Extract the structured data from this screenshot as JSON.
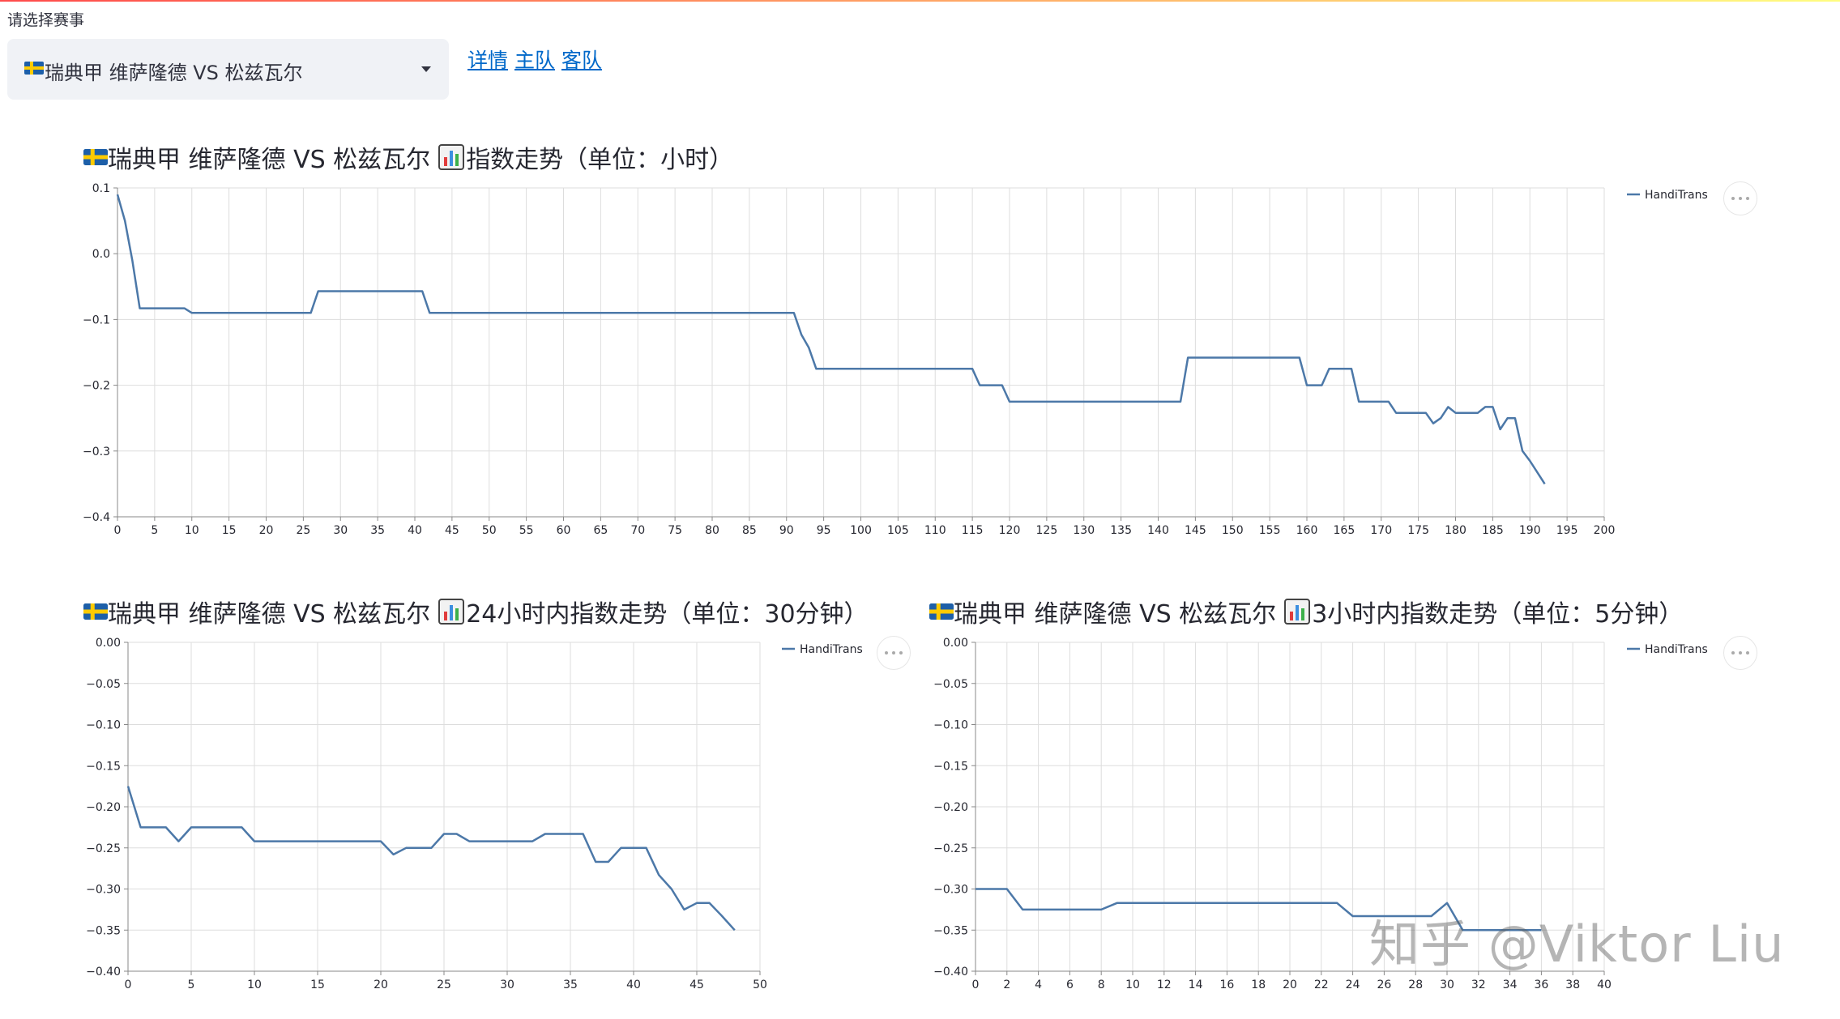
{
  "page": {
    "select_label": "请选择赛事",
    "selected_match": "瑞典甲 维萨隆德 VS 松兹瓦尔",
    "links": {
      "detail": "详情",
      "home": "主队",
      "away": "客队"
    },
    "watermark": "知乎 @Viktor Liu",
    "line_color": "#4c78a8",
    "flag_icon": "sweden-flag-icon",
    "chart_icon": "bar-chart-icon"
  },
  "chart_data": [
    {
      "type": "line",
      "title": "瑞典甲 维萨隆德 VS 松兹瓦尔 📊指数走势（单位：小时）",
      "title_main": "瑞典甲 维萨隆德 VS 松兹瓦尔",
      "title_sub": "指数走势（单位：小时）",
      "legend": "HandiTrans",
      "xlim": [
        0,
        200
      ],
      "ylim": [
        -0.4,
        0.1
      ],
      "x_ticks": [
        0,
        5,
        10,
        15,
        20,
        25,
        30,
        35,
        40,
        45,
        50,
        55,
        60,
        65,
        70,
        75,
        80,
        85,
        90,
        95,
        100,
        105,
        110,
        115,
        120,
        125,
        130,
        135,
        140,
        145,
        150,
        155,
        160,
        165,
        170,
        175,
        180,
        185,
        190,
        195,
        200
      ],
      "y_ticks": [
        0.1,
        0.0,
        -0.1,
        -0.2,
        -0.3,
        -0.4
      ],
      "y_tick_labels": [
        "0.1",
        "0.0",
        "−0.1",
        "−0.2",
        "−0.3",
        "−0.4"
      ],
      "series": [
        {
          "name": "HandiTrans",
          "x": [
            0,
            1,
            2,
            3,
            9,
            10,
            26,
            27,
            41,
            42,
            91,
            92,
            93,
            94,
            115,
            116,
            119,
            120,
            143,
            144,
            159,
            160,
            162,
            163,
            166,
            167,
            171,
            172,
            176,
            177,
            178,
            179,
            180,
            181,
            183,
            184,
            185,
            186,
            187,
            188,
            189,
            190,
            192
          ],
          "y": [
            0.09,
            0.05,
            -0.01,
            -0.083,
            -0.083,
            -0.09,
            -0.09,
            -0.057,
            -0.057,
            -0.09,
            -0.09,
            -0.123,
            -0.143,
            -0.175,
            -0.175,
            -0.2,
            -0.2,
            -0.225,
            -0.225,
            -0.158,
            -0.158,
            -0.2,
            -0.2,
            -0.175,
            -0.175,
            -0.225,
            -0.225,
            -0.242,
            -0.242,
            -0.258,
            -0.25,
            -0.233,
            -0.242,
            -0.242,
            -0.242,
            -0.233,
            -0.233,
            -0.267,
            -0.25,
            -0.25,
            -0.3,
            -0.315,
            -0.35
          ]
        }
      ]
    },
    {
      "type": "line",
      "title": "瑞典甲 维萨隆德 VS 松兹瓦尔 📊24小时内指数走势（单位：30分钟）",
      "title_main": "瑞典甲 维萨隆德 VS 松兹瓦尔",
      "title_sub": "24小时内指数走势（单位：30分钟）",
      "legend": "HandiTrans",
      "xlim": [
        0,
        50
      ],
      "ylim": [
        -0.4,
        0.0
      ],
      "x_ticks": [
        0,
        5,
        10,
        15,
        20,
        25,
        30,
        35,
        40,
        45,
        50
      ],
      "y_ticks": [
        0.0,
        -0.05,
        -0.1,
        -0.15,
        -0.2,
        -0.25,
        -0.3,
        -0.35,
        -0.4
      ],
      "y_tick_labels": [
        "0.00",
        "−0.05",
        "−0.10",
        "−0.15",
        "−0.20",
        "−0.25",
        "−0.30",
        "−0.35",
        "−0.40"
      ],
      "series": [
        {
          "name": "HandiTrans",
          "x": [
            0,
            1,
            2,
            3,
            4,
            5,
            6,
            7,
            8,
            9,
            10,
            11,
            12,
            13,
            14,
            15,
            16,
            17,
            18,
            19,
            20,
            21,
            22,
            23,
            24,
            25,
            26,
            27,
            28,
            29,
            30,
            31,
            32,
            33,
            34,
            35,
            36,
            37,
            38,
            39,
            40,
            41,
            42,
            43,
            44,
            45,
            46,
            47,
            48
          ],
          "y": [
            -0.175,
            -0.225,
            -0.225,
            -0.225,
            -0.242,
            -0.225,
            -0.225,
            -0.225,
            -0.225,
            -0.225,
            -0.242,
            -0.242,
            -0.242,
            -0.242,
            -0.242,
            -0.242,
            -0.242,
            -0.242,
            -0.242,
            -0.242,
            -0.242,
            -0.258,
            -0.25,
            -0.25,
            -0.25,
            -0.233,
            -0.233,
            -0.242,
            -0.242,
            -0.242,
            -0.242,
            -0.242,
            -0.242,
            -0.233,
            -0.233,
            -0.233,
            -0.233,
            -0.267,
            -0.267,
            -0.25,
            -0.25,
            -0.25,
            -0.283,
            -0.3,
            -0.325,
            -0.317,
            -0.317,
            -0.333,
            -0.35
          ]
        }
      ]
    },
    {
      "type": "line",
      "title": "瑞典甲 维萨隆德 VS 松兹瓦尔 📊3小时内指数走势（单位：5分钟）",
      "title_main": "瑞典甲 维萨隆德 VS 松兹瓦尔",
      "title_sub": "3小时内指数走势（单位：5分钟）",
      "legend": "HandiTrans",
      "xlim": [
        0,
        40
      ],
      "ylim": [
        -0.4,
        0.0
      ],
      "x_ticks": [
        0,
        2,
        4,
        6,
        8,
        10,
        12,
        14,
        16,
        18,
        20,
        22,
        24,
        26,
        28,
        30,
        32,
        34,
        36,
        38,
        40
      ],
      "y_ticks": [
        0.0,
        -0.05,
        -0.1,
        -0.15,
        -0.2,
        -0.25,
        -0.3,
        -0.35,
        -0.4
      ],
      "y_tick_labels": [
        "0.00",
        "−0.05",
        "−0.10",
        "−0.15",
        "−0.20",
        "−0.25",
        "−0.30",
        "−0.35",
        "−0.40"
      ],
      "series": [
        {
          "name": "HandiTrans",
          "x": [
            0,
            1,
            2,
            3,
            4,
            5,
            6,
            7,
            8,
            9,
            10,
            11,
            12,
            13,
            14,
            15,
            16,
            17,
            18,
            19,
            20,
            21,
            22,
            23,
            24,
            25,
            26,
            27,
            28,
            29,
            30,
            31,
            32,
            33,
            34,
            35,
            36
          ],
          "y": [
            -0.3,
            -0.3,
            -0.3,
            -0.325,
            -0.325,
            -0.325,
            -0.325,
            -0.325,
            -0.325,
            -0.317,
            -0.317,
            -0.317,
            -0.317,
            -0.317,
            -0.317,
            -0.317,
            -0.317,
            -0.317,
            -0.317,
            -0.317,
            -0.317,
            -0.317,
            -0.317,
            -0.317,
            -0.333,
            -0.333,
            -0.333,
            -0.333,
            -0.333,
            -0.333,
            -0.317,
            -0.35,
            -0.35,
            -0.35,
            -0.35,
            -0.35,
            -0.35
          ]
        }
      ]
    }
  ]
}
